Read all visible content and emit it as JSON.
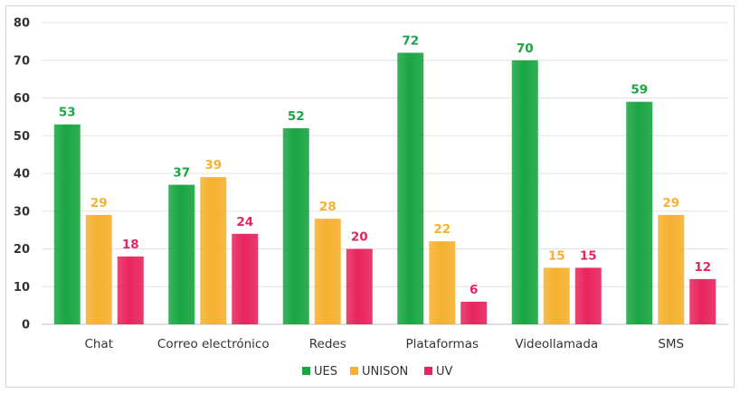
{
  "chart_data": {
    "type": "bar",
    "title": "",
    "xlabel": "",
    "ylabel": "",
    "ylim": [
      0,
      80
    ],
    "yticks": [
      0,
      10,
      20,
      30,
      40,
      50,
      60,
      70,
      80
    ],
    "grid": true,
    "legend_position": "bottom",
    "categories": [
      "Chat",
      "Correo electrónico",
      "Redes",
      "Plataformas",
      "Videollamada",
      "SMS"
    ],
    "series": [
      {
        "name": "UES",
        "color": "#1aa542",
        "values": [
          53,
          37,
          52,
          72,
          70,
          59
        ]
      },
      {
        "name": "UNISON",
        "color": "#f5b12f",
        "values": [
          29,
          39,
          28,
          22,
          15,
          29
        ]
      },
      {
        "name": "UV",
        "color": "#e8245e",
        "values": [
          18,
          24,
          20,
          6,
          15,
          12
        ]
      }
    ]
  }
}
